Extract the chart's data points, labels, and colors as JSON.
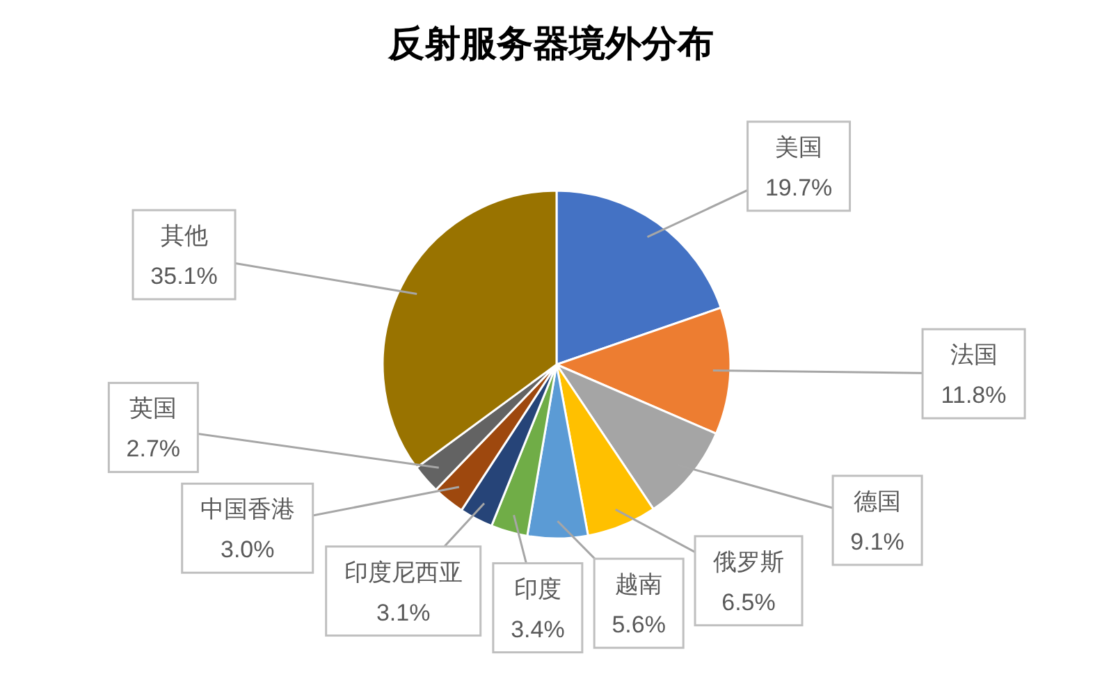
{
  "chart_data": {
    "type": "pie",
    "title": "反射服务器境外分布",
    "categories": [
      "美国",
      "法国",
      "德国",
      "俄罗斯",
      "越南",
      "印度",
      "印度尼西亚",
      "中国香港",
      "英国",
      "其他"
    ],
    "values": [
      19.7,
      11.8,
      9.1,
      6.5,
      5.6,
      3.4,
      3.1,
      3.0,
      2.7,
      35.1
    ],
    "colors": [
      "#4472c4",
      "#ed7d31",
      "#a5a5a5",
      "#ffc000",
      "#5b9bd5",
      "#70ad47",
      "#264478",
      "#9e480e",
      "#636363",
      "#997300"
    ],
    "value_labels": [
      "19.7%",
      "11.8%",
      "9.1%",
      "6.5%",
      "5.6%",
      "3.4%",
      "3.1%",
      "3.0%",
      "2.7%",
      "35.1%"
    ]
  }
}
